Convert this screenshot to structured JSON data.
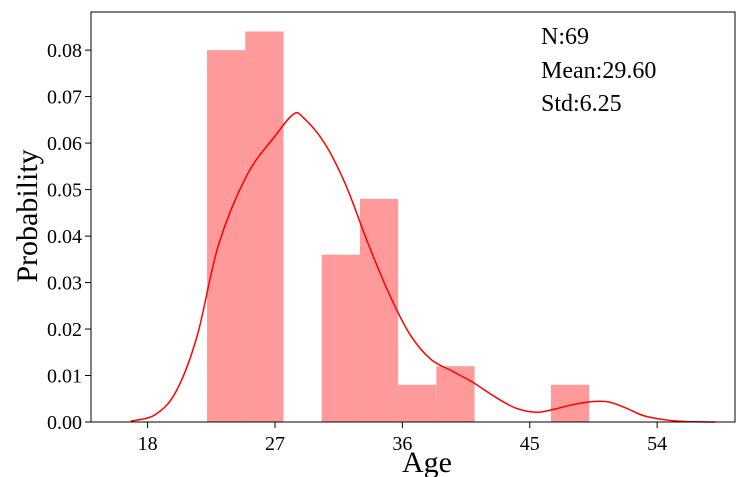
{
  "chart_data": {
    "type": "bar",
    "xlabel": "Age",
    "ylabel": "Probability",
    "xlim": [
      14.0,
      59.5
    ],
    "ylim": [
      0,
      0.0882
    ],
    "grid": false,
    "xticks": [
      18,
      27,
      36,
      45,
      54
    ],
    "yticks": [
      0.0,
      0.01,
      0.02,
      0.03,
      0.04,
      0.05,
      0.06,
      0.07,
      0.08
    ],
    "ytick_labels": [
      "0.00",
      "0.01",
      "0.02",
      "0.03",
      "0.04",
      "0.05",
      "0.06",
      "0.07",
      "0.08"
    ],
    "colors": {
      "bars": "#ff9a9a",
      "kde": "#ff0000"
    },
    "histogram": {
      "bins": [
        {
          "x0": 22.2,
          "x1": 24.9,
          "density": 0.08
        },
        {
          "x0": 24.9,
          "x1": 27.6,
          "density": 0.084
        },
        {
          "x0": 27.6,
          "x1": 30.3,
          "density": 0.0
        },
        {
          "x0": 30.3,
          "x1": 33.0,
          "density": 0.036
        },
        {
          "x0": 33.0,
          "x1": 35.7,
          "density": 0.048
        },
        {
          "x0": 35.7,
          "x1": 38.4,
          "density": 0.008
        },
        {
          "x0": 38.4,
          "x1": 41.1,
          "density": 0.012
        },
        {
          "x0": 41.1,
          "x1": 43.8,
          "density": 0.0
        },
        {
          "x0": 43.8,
          "x1": 46.5,
          "density": 0.0
        },
        {
          "x0": 46.5,
          "x1": 49.2,
          "density": 0.008
        }
      ]
    },
    "kde": {
      "x": [
        16.8,
        18.5,
        20.0,
        21.5,
        23.0,
        25.0,
        27.0,
        28.3,
        29.0,
        30.5,
        32.0,
        33.5,
        35.0,
        36.5,
        38.0,
        39.5,
        41.0,
        42.5,
        44.0,
        45.5,
        46.8,
        48.0,
        49.5,
        50.6,
        51.8,
        53.0,
        54.5,
        56.0,
        58.1
      ],
      "y": [
        0.0002,
        0.0015,
        0.0065,
        0.0185,
        0.038,
        0.053,
        0.0615,
        0.0662,
        0.0655,
        0.06,
        0.051,
        0.039,
        0.028,
        0.019,
        0.0135,
        0.011,
        0.0085,
        0.0055,
        0.003,
        0.0021,
        0.0028,
        0.0037,
        0.0044,
        0.0043,
        0.003,
        0.0014,
        0.0005,
        0.0001,
        0.0
      ]
    },
    "annotations": [
      "N:69",
      "Mean:29.60",
      "Std:6.25"
    ]
  }
}
